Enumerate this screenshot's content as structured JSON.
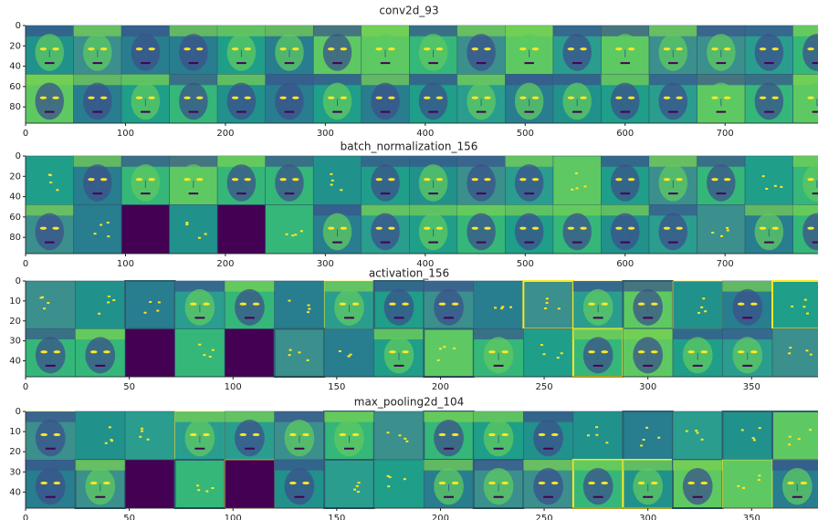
{
  "chart_data": [
    {
      "type": "image",
      "title": "conv2d_93",
      "xlim": [
        0,
        793
      ],
      "ylim": [
        96,
        0
      ],
      "xticks": [
        0,
        100,
        200,
        300,
        400,
        500,
        600,
        700
      ],
      "yticks": [
        0,
        20,
        40,
        60,
        80
      ]
    },
    {
      "type": "image",
      "title": "batch_normalization_156",
      "xlim": [
        0,
        793
      ],
      "ylim": [
        96,
        0
      ],
      "xticks": [
        0,
        100,
        200,
        300,
        400,
        500,
        600,
        700
      ],
      "yticks": [
        0,
        20,
        40,
        60,
        80
      ]
    },
    {
      "type": "image",
      "title": "activation_156",
      "xlim": [
        0,
        382
      ],
      "ylim": [
        48,
        0
      ],
      "xticks": [
        0,
        50,
        100,
        150,
        200,
        250,
        300,
        350
      ],
      "yticks": [
        0,
        10,
        20,
        30,
        40
      ]
    },
    {
      "type": "image",
      "title": "max_pooling2d_104",
      "xlim": [
        0,
        382
      ],
      "ylim": [
        48,
        0
      ],
      "xticks": [
        0,
        50,
        100,
        150,
        200,
        250,
        300,
        350
      ],
      "yticks": [
        0,
        10,
        20,
        30,
        40
      ]
    }
  ]
}
